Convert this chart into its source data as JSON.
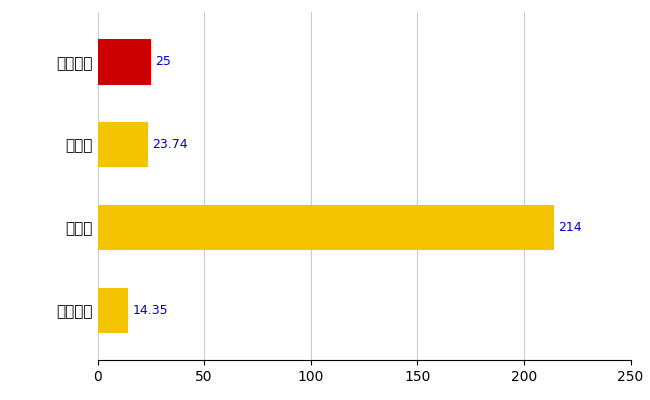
{
  "categories": [
    "新発田市",
    "県平均",
    "県最大",
    "全国平均"
  ],
  "values": [
    25,
    23.74,
    214,
    14.35
  ],
  "bar_colors": [
    "#cc0000",
    "#f5c400",
    "#f5c400",
    "#f5c400"
  ],
  "value_labels": [
    "25",
    "23.74",
    "214",
    "14.35"
  ],
  "label_color": "#0000cc",
  "xlim": [
    0,
    250
  ],
  "xticks": [
    0,
    50,
    100,
    150,
    200,
    250
  ],
  "background_color": "#ffffff",
  "grid_color": "#cccccc",
  "bar_height": 0.55
}
